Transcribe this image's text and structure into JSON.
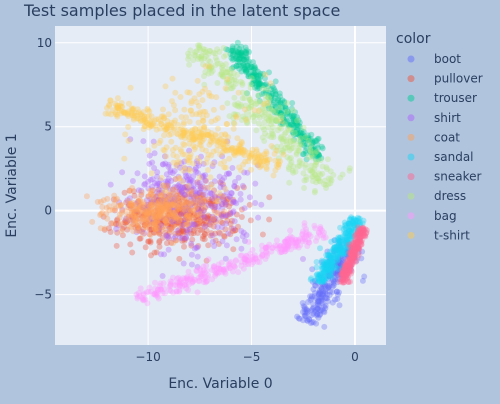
{
  "chart_data": {
    "type": "scatter",
    "title": "Test samples placed in the latent space",
    "xlabel": "Enc. Variable 0",
    "ylabel": "Enc. Variable 1",
    "xlim": [
      -14.5,
      1.5
    ],
    "ylim": [
      -8,
      11
    ],
    "xticks": [
      -10,
      -5,
      0
    ],
    "yticks": [
      -5,
      0,
      5,
      10
    ],
    "grid": true,
    "legend": {
      "title": "color",
      "placement": "right"
    },
    "series": [
      {
        "name": "boot",
        "color": "#636efa",
        "clusters": [
          {
            "kind": "line",
            "from": [
              -2.4,
              -6.6
            ],
            "to": [
              -0.2,
              -2.0
            ],
            "width": 0.7,
            "n": 260
          }
        ]
      },
      {
        "name": "pullover",
        "color": "#ef553b",
        "clusters": [
          {
            "kind": "blob",
            "center": [
              -8.5,
              -0.4
            ],
            "spread": [
              2.9,
              1.8
            ],
            "n": 420
          }
        ]
      },
      {
        "name": "trouser",
        "color": "#00cc96",
        "clusters": [
          {
            "kind": "line",
            "from": [
              -6.0,
              9.8
            ],
            "to": [
              -1.6,
              3.0
            ],
            "width": 0.45,
            "n": 330
          }
        ]
      },
      {
        "name": "shirt",
        "color": "#ab63fa",
        "clusters": [
          {
            "kind": "blob",
            "center": [
              -8.0,
              0.8
            ],
            "spread": [
              3.2,
              3.0
            ],
            "n": 330
          }
        ]
      },
      {
        "name": "coat",
        "color": "#ffa15a",
        "clusters": [
          {
            "kind": "blob",
            "center": [
              -9.5,
              0.0
            ],
            "spread": [
              2.4,
              1.2
            ],
            "n": 330
          }
        ]
      },
      {
        "name": "sandal",
        "color": "#19d3f3",
        "clusters": [
          {
            "kind": "line",
            "from": [
              -1.8,
              -4.3
            ],
            "to": [
              0.2,
              -0.4
            ],
            "width": 0.45,
            "n": 280
          }
        ]
      },
      {
        "name": "sneaker",
        "color": "#ff6692",
        "clusters": [
          {
            "kind": "line",
            "from": [
              -0.6,
              -4.3
            ],
            "to": [
              0.4,
              -1.0
            ],
            "width": 0.25,
            "n": 240
          }
        ]
      },
      {
        "name": "dress",
        "color": "#b6e880",
        "clusters": [
          {
            "kind": "line",
            "from": [
              -7.8,
              9.8
            ],
            "to": [
              -1.2,
              1.5
            ],
            "width": 1.0,
            "n": 330
          }
        ]
      },
      {
        "name": "bag",
        "color": "#ff97ff",
        "clusters": [
          {
            "kind": "line",
            "from": [
              -10.5,
              -5.3
            ],
            "to": [
              -1.5,
              -1.2
            ],
            "width": 0.5,
            "n": 300
          }
        ]
      },
      {
        "name": "t-shirt",
        "color": "#fecb52",
        "clusters": [
          {
            "kind": "line",
            "from": [
              -12.0,
              6.3
            ],
            "to": [
              -3.5,
              2.6
            ],
            "width": 0.5,
            "n": 260
          },
          {
            "kind": "blob",
            "center": [
              -7.5,
              4.5
            ],
            "spread": [
              3.3,
              3.2
            ],
            "n": 200
          }
        ]
      }
    ]
  }
}
